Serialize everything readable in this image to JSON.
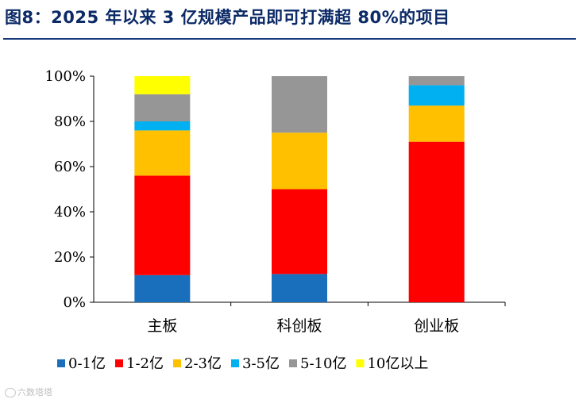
{
  "title": "图8：2025 年以来 3 亿规模产品即可打满超 80%的项目",
  "watermark": "六数塔塔",
  "chart_data": {
    "type": "bar",
    "stacked": true,
    "categories": [
      "主板",
      "科创板",
      "创业板"
    ],
    "yticks": [
      "0%",
      "20%",
      "40%",
      "60%",
      "80%",
      "100%"
    ],
    "ylim": [
      0,
      100
    ],
    "grid": false,
    "legend_position": "bottom",
    "series": [
      {
        "name": "0-1亿",
        "color": "#1a6fbd",
        "values": [
          12,
          12.5,
          0
        ]
      },
      {
        "name": "1-2亿",
        "color": "#ff0000",
        "values": [
          44,
          37.5,
          71
        ]
      },
      {
        "name": "2-3亿",
        "color": "#ffc000",
        "values": [
          20,
          25,
          16
        ]
      },
      {
        "name": "3-5亿",
        "color": "#00b0f0",
        "values": [
          4,
          0,
          9
        ]
      },
      {
        "name": "5-10亿",
        "color": "#969696",
        "values": [
          12,
          25,
          4
        ]
      },
      {
        "name": "10亿以上",
        "color": "#ffff00",
        "values": [
          8,
          0,
          0
        ]
      }
    ]
  }
}
